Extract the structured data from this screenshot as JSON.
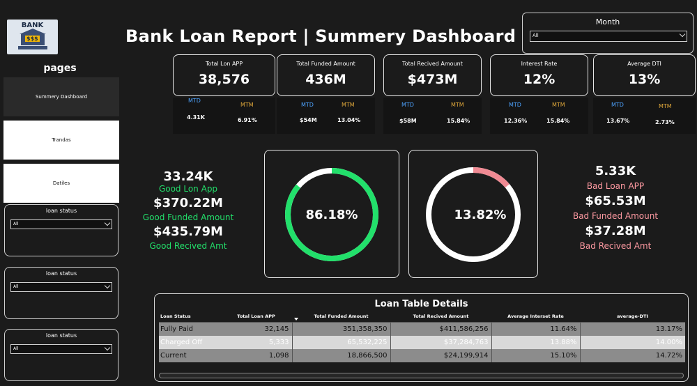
{
  "logo": {
    "text": "BANK",
    "sign": "$$$"
  },
  "nav": {
    "title": "pages",
    "items": [
      "Summery Dashboard",
      "Trandas",
      "Datiles"
    ]
  },
  "slicers": [
    {
      "label": "loan status",
      "value": "All"
    },
    {
      "label": "loan status",
      "value": "All"
    },
    {
      "label": "loan status",
      "value": "All"
    }
  ],
  "header": {
    "title": "Bank Loan Report | Summery Dashboard"
  },
  "month": {
    "label": "Month",
    "value": "All"
  },
  "kpis": [
    {
      "title": "Total Lon APP",
      "value": "38,576",
      "mtd_label": "MTD",
      "mtd": "4.31K",
      "mtm_label": "MTM",
      "mtm": "6.91%"
    },
    {
      "title": "Total Funded Amount",
      "value": "436M",
      "mtd_label": "MTD",
      "mtd": "$54M",
      "mtm_label": "MTM",
      "mtm": "13.04%"
    },
    {
      "title": "Total Recived Amount",
      "value": "$473M",
      "mtd_label": "MTD",
      "mtd": "$58M",
      "mtm_label": "MTM",
      "mtm": "15.84%"
    },
    {
      "title": "Interest Rate",
      "value": "12%",
      "mtd_label": "MTD",
      "mtd": "12.36%",
      "mtm_label": "MTM",
      "mtm": "15.84%"
    },
    {
      "title": "Average DTI",
      "value": "13%",
      "mtd_label": "MTD",
      "mtd": "13.67%",
      "mtm_label": "MTM",
      "mtm": "2.73%"
    }
  ],
  "good": {
    "app": "33.24K",
    "app_label": "Good Lon App",
    "funded": "$370.22M",
    "funded_label": "Good Funded Amount",
    "received": "$435.79M",
    "received_label": "Good Recived Amt",
    "percent_text": "86.18%",
    "percent": 86.18
  },
  "bad": {
    "app": "5.33K",
    "app_label": "Bad Loan APP",
    "funded": "$65.53M",
    "funded_label": "Bad Funded Amount",
    "received": "$37.28M",
    "received_label": "Bad Recived Amt",
    "percent_text": "13.82%",
    "percent": 13.82
  },
  "colors": {
    "good": "#22e06b",
    "bad": "#f08a93",
    "track": "#ffffff",
    "mtd": "#4da3ff",
    "mtm": "#e0a83b"
  },
  "table": {
    "title": "Loan Table Details",
    "columns": [
      "Loan Status",
      "Total Loan APP",
      "Total Funded Amount",
      "Total Recived Amount",
      "Average Interset Rate",
      "average-DTI"
    ],
    "rows": [
      [
        "Fully Paid",
        "32,145",
        "351,358,350",
        "$411,586,256",
        "11.64%",
        "13.17%"
      ],
      [
        "Charged Off",
        "5,333",
        "65,532,225",
        "$37,284,763",
        "13.88%",
        "14.00%"
      ],
      [
        "Current",
        "1,098",
        "18,866,500",
        "$24,199,914",
        "15.10%",
        "14.72%"
      ]
    ]
  }
}
